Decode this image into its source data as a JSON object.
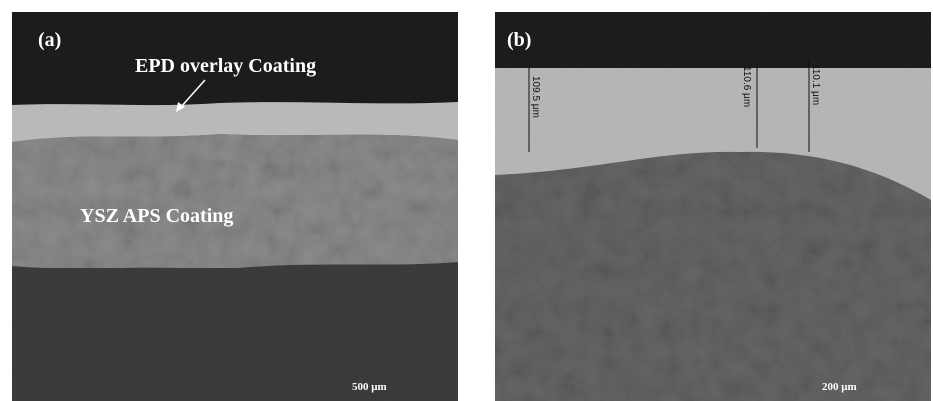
{
  "panels": [
    {
      "label": "(a)",
      "annotations": [
        "EPD overlay  Coating",
        "YSZ APS Coating"
      ],
      "scale_bar": "500 μm"
    },
    {
      "label": "(b)",
      "measurements": [
        "109.5 μm",
        "110.6 μm",
        "110.1 μm"
      ],
      "scale_bar": "200 μm"
    }
  ]
}
